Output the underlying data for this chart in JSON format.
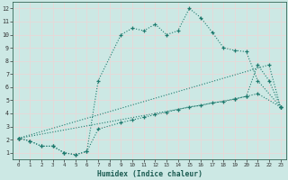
{
  "background_color": "#cce8e4",
  "grid_color": "#d8f0ec",
  "line_color": "#1e7a6e",
  "xlabel": "Humidex (Indice chaleur)",
  "xlim": [
    -0.5,
    23.5
  ],
  "ylim": [
    0.5,
    12.5
  ],
  "yticks": [
    1,
    2,
    3,
    4,
    5,
    6,
    7,
    8,
    9,
    10,
    11,
    12
  ],
  "xticks": [
    0,
    1,
    2,
    3,
    4,
    5,
    6,
    7,
    8,
    9,
    10,
    11,
    12,
    13,
    14,
    15,
    16,
    17,
    18,
    19,
    20,
    21,
    22,
    23
  ],
  "curve1_x": [
    0,
    1,
    2,
    3,
    4,
    5,
    6,
    7,
    9,
    10,
    11,
    12,
    13,
    14,
    15,
    16,
    17,
    18,
    19,
    20,
    21,
    23
  ],
  "curve1_y": [
    2.1,
    1.9,
    1.5,
    1.5,
    1.0,
    0.85,
    1.1,
    6.5,
    10.0,
    10.5,
    10.3,
    10.8,
    10.0,
    10.3,
    12.0,
    11.3,
    10.2,
    9.0,
    8.8,
    8.7,
    6.5,
    4.5
  ],
  "curve2_x": [
    0,
    1,
    2,
    3,
    4,
    5,
    6,
    7,
    9,
    10,
    11,
    12,
    13,
    14,
    15,
    16,
    17,
    18,
    19,
    20,
    21,
    23
  ],
  "curve2_y": [
    2.1,
    1.9,
    1.5,
    1.5,
    1.0,
    0.85,
    1.1,
    2.8,
    3.3,
    3.5,
    3.7,
    3.9,
    4.1,
    4.3,
    4.5,
    4.6,
    4.8,
    4.9,
    5.1,
    5.3,
    5.5,
    4.5
  ],
  "curve3_x": [
    0,
    19,
    20,
    21,
    22,
    23
  ],
  "curve3_y": [
    2.1,
    5.1,
    5.3,
    7.7,
    6.5,
    4.5
  ],
  "curve4_x": [
    0,
    22,
    23
  ],
  "curve4_y": [
    2.1,
    7.7,
    4.5
  ],
  "lw": 0.8,
  "ms": 3.5
}
